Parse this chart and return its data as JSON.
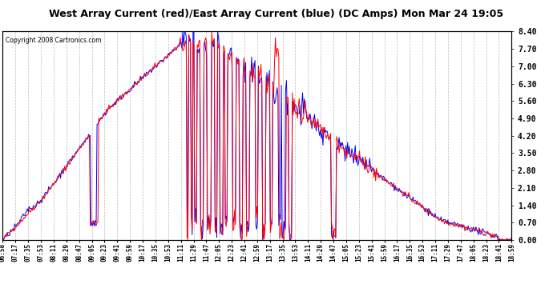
{
  "title": "West Array Current (red)/East Array Current (blue) (DC Amps) Mon Mar 24 19:05",
  "copyright": "Copyright 2008 Cartronics.com",
  "ylabel_right_ticks": [
    0.0,
    0.7,
    1.4,
    2.1,
    2.8,
    3.5,
    4.2,
    4.9,
    5.6,
    6.3,
    7.0,
    7.7,
    8.4
  ],
  "ylim": [
    0.0,
    8.4
  ],
  "background_color": "#ffffff",
  "plot_bg_color": "#ffffff",
  "grid_color": "#bbbbbb",
  "red_color": "#ff0000",
  "blue_color": "#0000ff",
  "xtick_labels": [
    "06:58",
    "07:17",
    "07:35",
    "07:53",
    "08:11",
    "08:29",
    "08:47",
    "09:05",
    "09:23",
    "09:41",
    "09:59",
    "10:17",
    "10:35",
    "10:53",
    "11:11",
    "11:29",
    "11:47",
    "12:05",
    "12:23",
    "12:41",
    "12:59",
    "13:17",
    "13:35",
    "13:53",
    "14:11",
    "14:29",
    "14:47",
    "15:05",
    "15:23",
    "15:41",
    "15:59",
    "16:17",
    "16:35",
    "16:53",
    "17:11",
    "17:29",
    "17:47",
    "18:05",
    "18:23",
    "18:41",
    "18:59"
  ]
}
